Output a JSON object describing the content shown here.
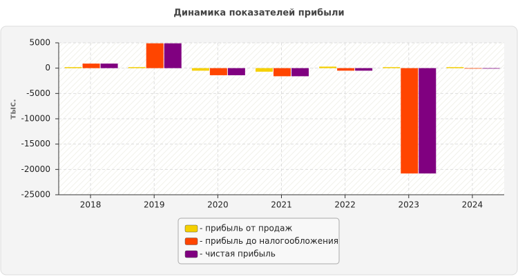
{
  "chart_data": {
    "type": "bar",
    "title": "Динамика показателей прибыли",
    "y_label": "тыс.",
    "categories": [
      "2018",
      "2019",
      "2020",
      "2021",
      "2022",
      "2023",
      "2024"
    ],
    "series": [
      {
        "name": "- прибыль от продаж",
        "color": "#f5d000",
        "values": [
          200,
          200,
          -500,
          -700,
          300,
          200,
          200
        ]
      },
      {
        "name": "- прибыль до налогообложения",
        "color": "#ff4500",
        "values": [
          900,
          4900,
          -1400,
          -1600,
          -500,
          -20800,
          -100
        ]
      },
      {
        "name": "- чистая прибыль",
        "color": "#800080",
        "values": [
          900,
          4900,
          -1400,
          -1600,
          -500,
          -20800,
          -100
        ]
      }
    ],
    "ylim": [
      -25000,
      5000
    ],
    "yticks": [
      -25000,
      -20000,
      -15000,
      -10000,
      -5000,
      0,
      5000
    ],
    "grid": true
  }
}
